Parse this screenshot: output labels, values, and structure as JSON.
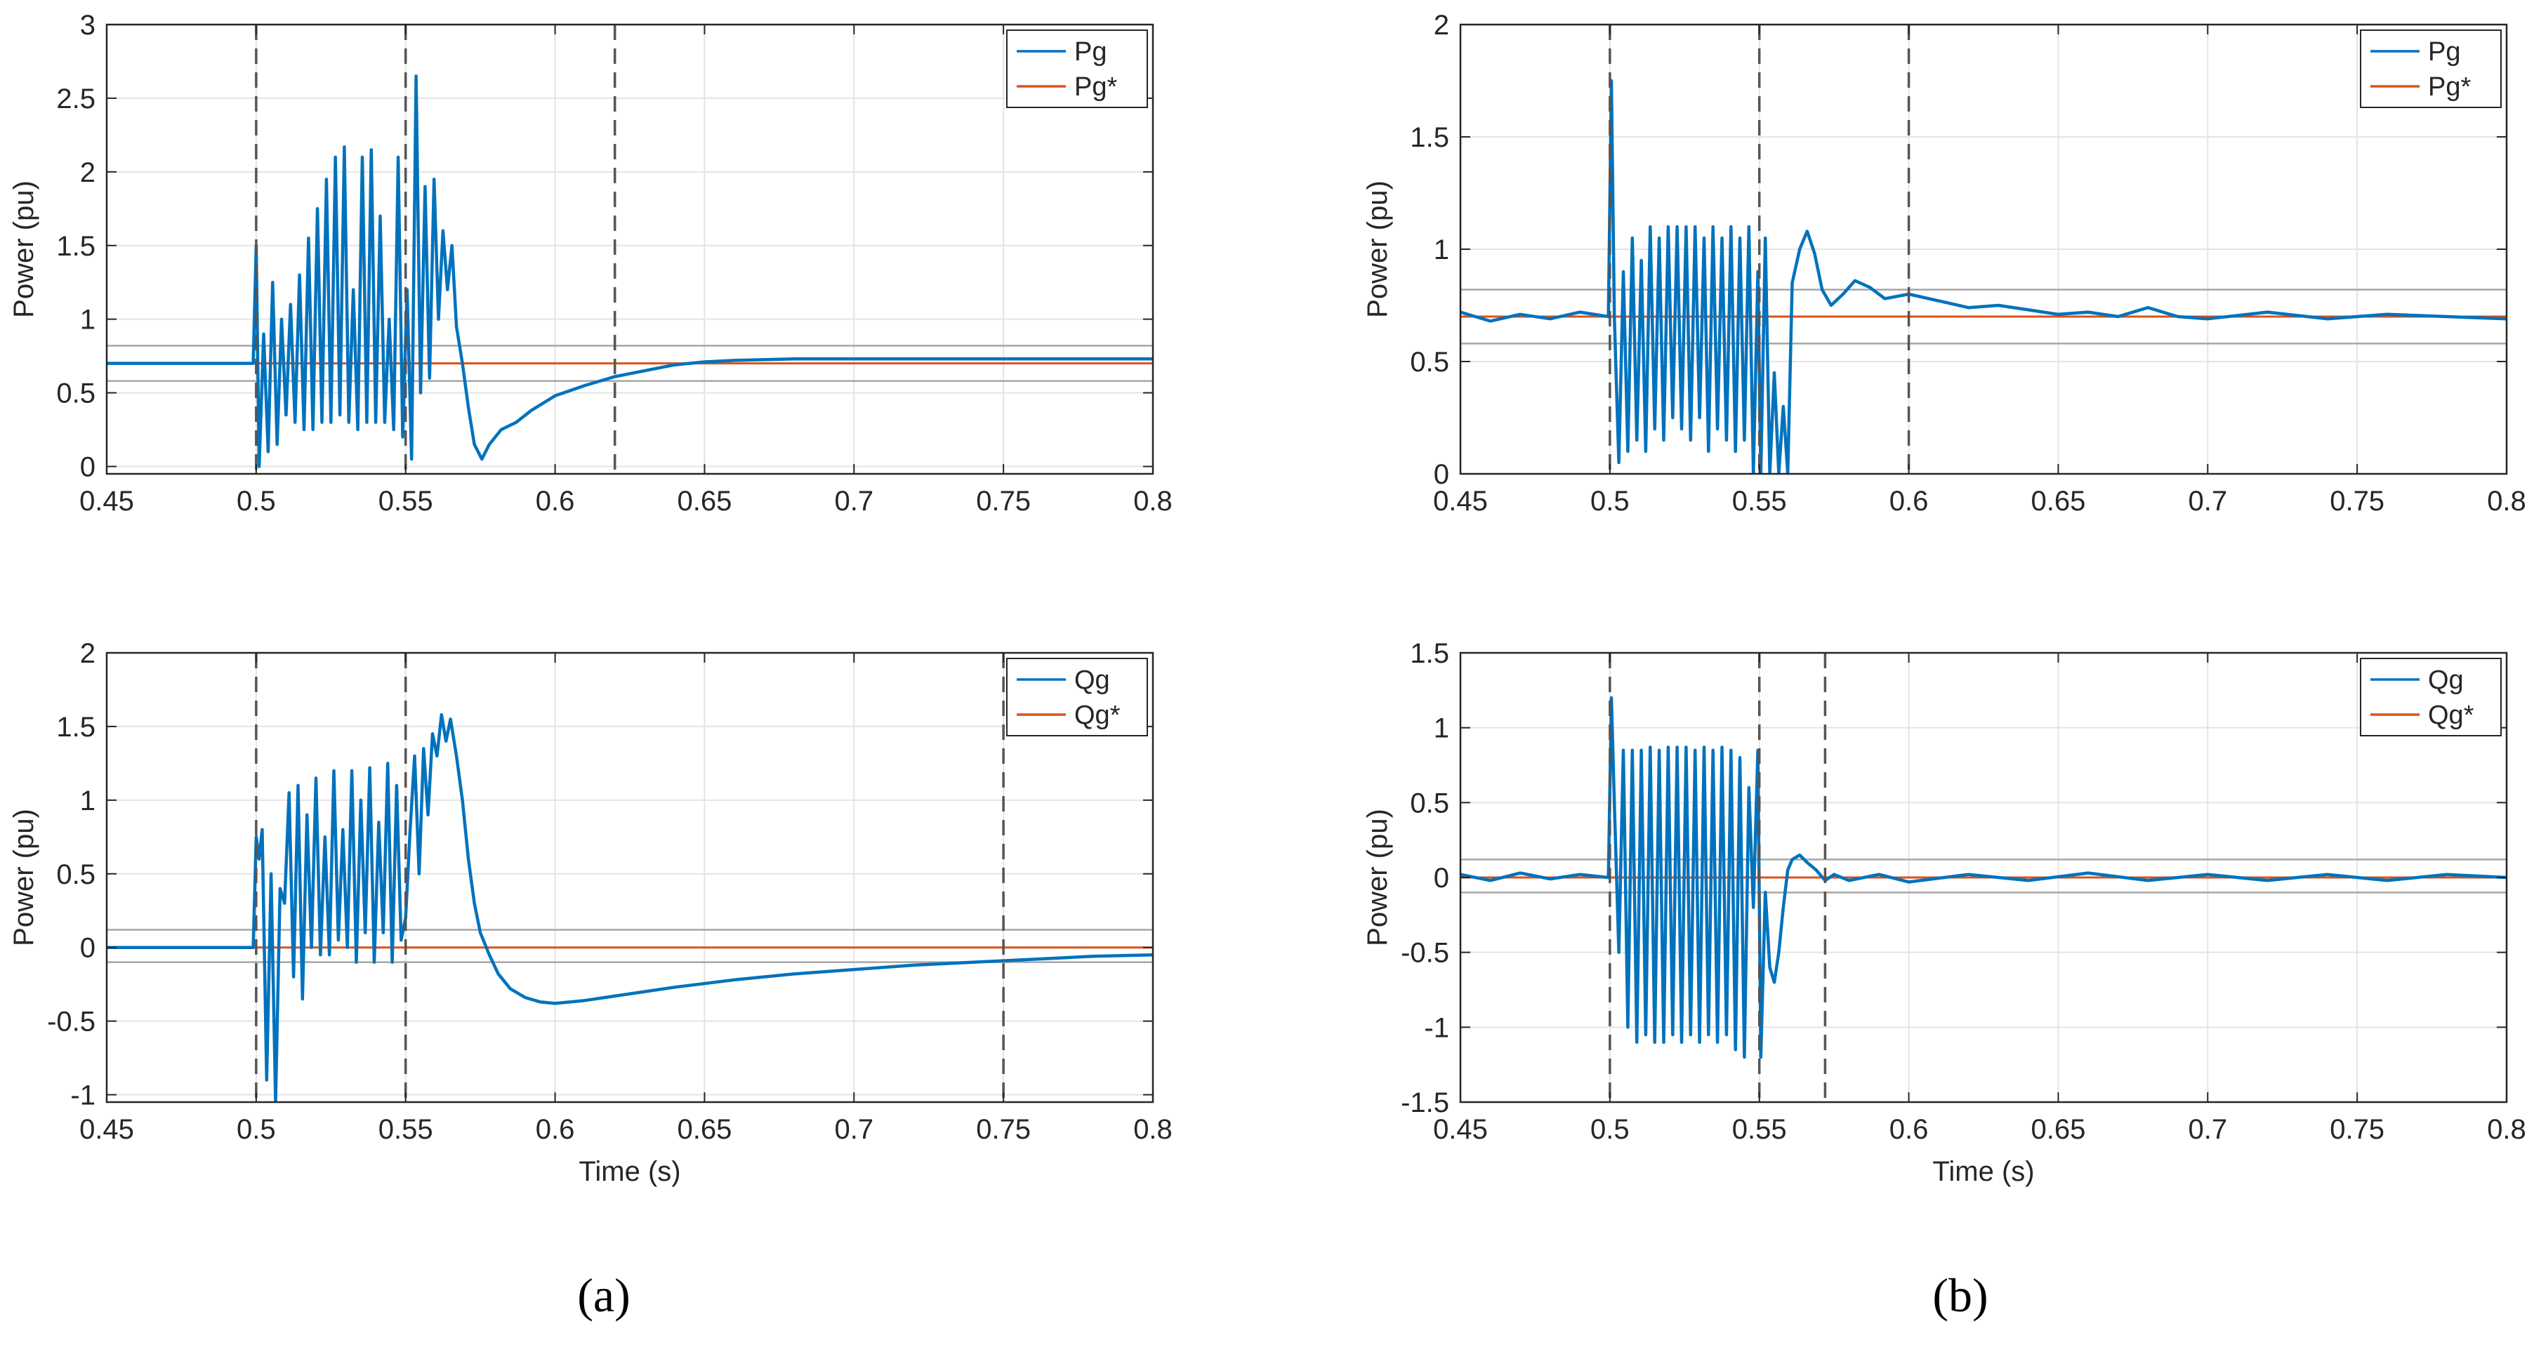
{
  "captions": {
    "a": "(a)",
    "b": "(b)"
  },
  "chart_data": [
    {
      "id": "a-top",
      "type": "line",
      "xlabel": "",
      "ylabel": "Power (pu)",
      "xlim": [
        0.45,
        0.8
      ],
      "ylim": [
        -0.05,
        3
      ],
      "xticks": [
        0.45,
        0.5,
        0.55,
        0.6,
        0.65,
        0.7,
        0.75,
        0.8
      ],
      "xtick_labels": [
        "0.45",
        "0.5",
        "0.55",
        "0.6",
        "0.65",
        "0.7",
        "0.75",
        "0.8"
      ],
      "yticks": [
        0,
        0.5,
        1,
        1.5,
        2,
        2.5,
        3
      ],
      "ytick_labels": [
        "0",
        "0.5",
        "1",
        "1.5",
        "2",
        "2.5",
        "3"
      ],
      "grid": true,
      "legend": {
        "position": "top-right",
        "entries": [
          "Pg",
          "Pg*"
        ]
      },
      "vlines": [
        0.5,
        0.55,
        0.62
      ],
      "band": [
        0.58,
        0.82
      ],
      "series": [
        {
          "name": "Pg",
          "color": "#0072BD",
          "x": [
            0.45,
            0.499,
            0.5,
            0.501,
            0.5025,
            0.504,
            0.5055,
            0.507,
            0.5085,
            0.51,
            0.5115,
            0.513,
            0.5145,
            0.516,
            0.5175,
            0.519,
            0.5205,
            0.522,
            0.5235,
            0.525,
            0.5265,
            0.528,
            0.5295,
            0.531,
            0.5325,
            0.534,
            0.5355,
            0.537,
            0.5385,
            0.54,
            0.5415,
            0.543,
            0.5445,
            0.546,
            0.5475,
            0.549,
            0.5505,
            0.552,
            0.5535,
            0.555,
            0.5565,
            0.558,
            0.5595,
            0.561,
            0.5625,
            0.564,
            0.5655,
            0.567,
            0.569,
            0.571,
            0.573,
            0.5755,
            0.578,
            0.582,
            0.587,
            0.592,
            0.6,
            0.61,
            0.62,
            0.63,
            0.64,
            0.65,
            0.66,
            0.68,
            0.7,
            0.72,
            0.75,
            0.8
          ],
          "y": [
            0.7,
            0.7,
            1.5,
            0.0,
            0.9,
            0.1,
            1.25,
            0.15,
            1.0,
            0.35,
            1.1,
            0.3,
            1.3,
            0.25,
            1.55,
            0.25,
            1.75,
            0.3,
            1.95,
            0.3,
            2.1,
            0.35,
            2.17,
            0.3,
            1.2,
            0.25,
            2.1,
            0.3,
            2.15,
            0.3,
            1.7,
            0.3,
            1.0,
            0.25,
            2.1,
            0.2,
            1.2,
            0.05,
            2.65,
            0.5,
            1.9,
            0.6,
            1.95,
            1.0,
            1.6,
            1.2,
            1.5,
            0.95,
            0.7,
            0.4,
            0.15,
            0.05,
            0.15,
            0.25,
            0.3,
            0.38,
            0.48,
            0.55,
            0.61,
            0.65,
            0.69,
            0.71,
            0.72,
            0.73,
            0.73,
            0.73,
            0.73,
            0.73
          ]
        },
        {
          "name": "Pg*",
          "color": "#D95319",
          "x": [
            0.45,
            0.8
          ],
          "y": [
            0.7,
            0.7
          ]
        }
      ]
    },
    {
      "id": "a-bottom",
      "type": "line",
      "xlabel": "Time (s)",
      "ylabel": "Power (pu)",
      "xlim": [
        0.45,
        0.8
      ],
      "ylim": [
        -1.05,
        2
      ],
      "xticks": [
        0.45,
        0.5,
        0.55,
        0.6,
        0.65,
        0.7,
        0.75,
        0.8
      ],
      "xtick_labels": [
        "0.45",
        "0.5",
        "0.55",
        "0.6",
        "0.65",
        "0.7",
        "0.75",
        "0.8"
      ],
      "yticks": [
        -1,
        -0.5,
        0,
        0.5,
        1,
        1.5,
        2
      ],
      "ytick_labels": [
        "-1",
        "-0.5",
        "0",
        "0.5",
        "1",
        "1.5",
        "2"
      ],
      "grid": true,
      "legend": {
        "position": "top-right",
        "entries": [
          "Qg",
          "Qg*"
        ]
      },
      "vlines": [
        0.5,
        0.55,
        0.75
      ],
      "band": [
        -0.1,
        0.12
      ],
      "series": [
        {
          "name": "Qg",
          "color": "#0072BD",
          "x": [
            0.45,
            0.499,
            0.5,
            0.501,
            0.502,
            0.5035,
            0.505,
            0.5065,
            0.508,
            0.5095,
            0.511,
            0.5125,
            0.514,
            0.5155,
            0.517,
            0.5185,
            0.52,
            0.5215,
            0.523,
            0.5245,
            0.526,
            0.5275,
            0.529,
            0.5305,
            0.532,
            0.5335,
            0.535,
            0.5365,
            0.538,
            0.5395,
            0.541,
            0.5425,
            0.544,
            0.5455,
            0.547,
            0.5485,
            0.55,
            0.5515,
            0.553,
            0.5545,
            0.556,
            0.5575,
            0.559,
            0.5605,
            0.562,
            0.5635,
            0.565,
            0.567,
            0.569,
            0.571,
            0.573,
            0.575,
            0.578,
            0.581,
            0.585,
            0.59,
            0.595,
            0.6,
            0.61,
            0.62,
            0.64,
            0.66,
            0.68,
            0.7,
            0.72,
            0.75,
            0.78,
            0.8
          ],
          "y": [
            0.0,
            0.0,
            0.75,
            0.6,
            0.8,
            -0.9,
            0.5,
            -1.05,
            0.4,
            0.3,
            1.05,
            -0.2,
            1.1,
            -0.35,
            0.9,
            0.0,
            1.15,
            -0.05,
            0.75,
            -0.05,
            1.2,
            0.05,
            0.8,
            0.0,
            1.2,
            -0.1,
            1.0,
            0.1,
            1.22,
            -0.1,
            0.85,
            0.1,
            1.25,
            -0.1,
            1.1,
            0.05,
            0.2,
            0.8,
            1.3,
            0.5,
            1.35,
            0.9,
            1.45,
            1.3,
            1.58,
            1.4,
            1.55,
            1.3,
            1.0,
            0.6,
            0.3,
            0.1,
            -0.05,
            -0.18,
            -0.28,
            -0.34,
            -0.37,
            -0.38,
            -0.36,
            -0.33,
            -0.27,
            -0.22,
            -0.18,
            -0.15,
            -0.12,
            -0.09,
            -0.06,
            -0.05
          ]
        },
        {
          "name": "Qg*",
          "color": "#D95319",
          "x": [
            0.45,
            0.8
          ],
          "y": [
            0.0,
            0.0
          ]
        }
      ]
    },
    {
      "id": "b-top",
      "type": "line",
      "xlabel": "",
      "ylabel": "Power (pu)",
      "xlim": [
        0.45,
        0.8
      ],
      "ylim": [
        0,
        2
      ],
      "xticks": [
        0.45,
        0.5,
        0.55,
        0.6,
        0.65,
        0.7,
        0.75,
        0.8
      ],
      "xtick_labels": [
        "0.45",
        "0.5",
        "0.55",
        "0.6",
        "0.65",
        "0.7",
        "0.75",
        "0.8"
      ],
      "yticks": [
        0,
        0.5,
        1,
        1.5,
        2
      ],
      "ytick_labels": [
        "0",
        "0.5",
        "1",
        "1.5",
        "2"
      ],
      "grid": true,
      "legend": {
        "position": "top-right",
        "entries": [
          "Pg",
          "Pg*"
        ]
      },
      "vlines": [
        0.5,
        0.55,
        0.6
      ],
      "band": [
        0.58,
        0.82
      ],
      "series": [
        {
          "name": "Pg",
          "color": "#0072BD",
          "x": [
            0.45,
            0.46,
            0.47,
            0.48,
            0.49,
            0.4995,
            0.5005,
            0.5015,
            0.503,
            0.5045,
            0.506,
            0.5075,
            0.509,
            0.5105,
            0.512,
            0.5135,
            0.515,
            0.5165,
            0.518,
            0.5195,
            0.521,
            0.5225,
            0.524,
            0.5255,
            0.527,
            0.5285,
            0.53,
            0.5315,
            0.533,
            0.5345,
            0.536,
            0.5375,
            0.539,
            0.5405,
            0.542,
            0.5435,
            0.545,
            0.5465,
            0.548,
            0.5495,
            0.5505,
            0.552,
            0.5535,
            0.555,
            0.5565,
            0.558,
            0.5595,
            0.561,
            0.5635,
            0.566,
            0.5685,
            0.571,
            0.574,
            0.578,
            0.582,
            0.587,
            0.592,
            0.6,
            0.61,
            0.62,
            0.63,
            0.64,
            0.65,
            0.66,
            0.67,
            0.68,
            0.69,
            0.7,
            0.72,
            0.74,
            0.76,
            0.78,
            0.8
          ],
          "y": [
            0.72,
            0.68,
            0.71,
            0.69,
            0.72,
            0.7,
            1.75,
            0.7,
            0.05,
            0.9,
            0.1,
            1.05,
            0.15,
            0.95,
            0.1,
            1.1,
            0.2,
            1.05,
            0.15,
            1.1,
            0.25,
            1.1,
            0.2,
            1.1,
            0.15,
            1.1,
            0.25,
            1.05,
            0.1,
            1.1,
            0.2,
            1.05,
            0.15,
            1.1,
            0.1,
            1.05,
            0.15,
            1.1,
            0.0,
            0.9,
            0.0,
            1.05,
            0.0,
            0.45,
            0.0,
            0.3,
            0.0,
            0.85,
            1.0,
            1.08,
            0.98,
            0.82,
            0.75,
            0.8,
            0.86,
            0.83,
            0.78,
            0.8,
            0.77,
            0.74,
            0.75,
            0.73,
            0.71,
            0.72,
            0.7,
            0.74,
            0.7,
            0.69,
            0.72,
            0.69,
            0.71,
            0.7,
            0.69
          ]
        },
        {
          "name": "Pg*",
          "color": "#D95319",
          "x": [
            0.45,
            0.8
          ],
          "y": [
            0.7,
            0.7
          ]
        }
      ]
    },
    {
      "id": "b-bottom",
      "type": "line",
      "xlabel": "Time (s)",
      "ylabel": "Power (pu)",
      "xlim": [
        0.45,
        0.8
      ],
      "ylim": [
        -1.5,
        1.5
      ],
      "xticks": [
        0.45,
        0.5,
        0.55,
        0.6,
        0.65,
        0.7,
        0.75,
        0.8
      ],
      "xtick_labels": [
        "0.45",
        "0.5",
        "0.55",
        "0.6",
        "0.65",
        "0.7",
        "0.75",
        "0.8"
      ],
      "yticks": [
        -1.5,
        -1,
        -0.5,
        0,
        0.5,
        1,
        1.5
      ],
      "ytick_labels": [
        "-1.5",
        "-1",
        "-0.5",
        "0",
        "0.5",
        "1",
        "1.5"
      ],
      "grid": true,
      "legend": {
        "position": "top-right",
        "entries": [
          "Qg",
          "Qg*"
        ]
      },
      "vlines": [
        0.5,
        0.55,
        0.572
      ],
      "band": [
        -0.1,
        0.12
      ],
      "series": [
        {
          "name": "Qg",
          "color": "#0072BD",
          "x": [
            0.45,
            0.46,
            0.47,
            0.48,
            0.49,
            0.4995,
            0.5005,
            0.5015,
            0.503,
            0.5045,
            0.506,
            0.5075,
            0.509,
            0.5105,
            0.512,
            0.5135,
            0.515,
            0.5165,
            0.518,
            0.5195,
            0.521,
            0.5225,
            0.524,
            0.5255,
            0.527,
            0.5285,
            0.53,
            0.5315,
            0.533,
            0.5345,
            0.536,
            0.5375,
            0.539,
            0.5405,
            0.542,
            0.5435,
            0.545,
            0.5465,
            0.548,
            0.5495,
            0.5505,
            0.552,
            0.5535,
            0.555,
            0.5565,
            0.558,
            0.5595,
            0.561,
            0.5635,
            0.566,
            0.569,
            0.572,
            0.575,
            0.58,
            0.59,
            0.6,
            0.62,
            0.64,
            0.66,
            0.68,
            0.7,
            0.72,
            0.74,
            0.76,
            0.78,
            0.8
          ],
          "y": [
            0.02,
            -0.02,
            0.03,
            -0.01,
            0.02,
            0.0,
            1.2,
            0.5,
            -0.5,
            0.85,
            -1.0,
            0.85,
            -1.1,
            0.85,
            -1.05,
            0.87,
            -1.1,
            0.85,
            -1.1,
            0.87,
            -1.05,
            0.87,
            -1.1,
            0.87,
            -1.05,
            0.85,
            -1.1,
            0.87,
            -1.05,
            0.85,
            -1.1,
            0.87,
            -1.05,
            0.85,
            -1.15,
            0.8,
            -1.2,
            0.6,
            -0.2,
            0.85,
            -1.2,
            -0.1,
            -0.6,
            -0.7,
            -0.5,
            -0.2,
            0.05,
            0.12,
            0.15,
            0.1,
            0.05,
            -0.02,
            0.02,
            -0.02,
            0.02,
            -0.03,
            0.02,
            -0.02,
            0.03,
            -0.02,
            0.02,
            -0.02,
            0.02,
            -0.02,
            0.02,
            0.0
          ]
        },
        {
          "name": "Qg*",
          "color": "#D95319",
          "x": [
            0.45,
            0.8
          ],
          "y": [
            0.0,
            0.0
          ]
        }
      ]
    }
  ]
}
